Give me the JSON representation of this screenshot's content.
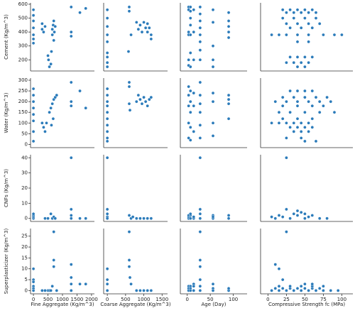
{
  "chart_data": [
    {
      "type": "scatter",
      "color": "#2b7bba",
      "ylabel": "Cement (Kg/m^3)",
      "yticks": [
        200,
        300,
        400,
        500,
        600
      ],
      "xlim": [
        -100,
        2100
      ],
      "ylim": [
        120,
        610
      ],
      "x": [
        0,
        0,
        0,
        0,
        0,
        0,
        0,
        300,
        300,
        350,
        400,
        500,
        520,
        550,
        600,
        620,
        650,
        650,
        680,
        700,
        720,
        750,
        700,
        1300,
        1300,
        1300,
        1600,
        1800
      ],
      "y": [
        560,
        520,
        480,
        430,
        380,
        350,
        320,
        460,
        420,
        400,
        440,
        230,
        200,
        150,
        170,
        260,
        420,
        380,
        450,
        480,
        400,
        440,
        340,
        580,
        400,
        370,
        540,
        570
      ]
    },
    {
      "type": "scatter",
      "color": "#2b7bba",
      "xlim": [
        -100,
        1650
      ],
      "ylim": [
        120,
        610
      ],
      "x": [
        0,
        0,
        0,
        0,
        0,
        0,
        0,
        0,
        0,
        600,
        600,
        580,
        650,
        800,
        850,
        900,
        950,
        1000,
        1050,
        1100,
        1100,
        1150,
        1200,
        1200
      ],
      "y": [
        560,
        500,
        440,
        380,
        330,
        250,
        220,
        180,
        150,
        580,
        550,
        260,
        380,
        470,
        420,
        450,
        400,
        470,
        430,
        400,
        460,
        430,
        380,
        350
      ]
    },
    {
      "type": "scatter",
      "color": "#2b7bba",
      "xlim": [
        -15,
        130
      ],
      "ylim": [
        120,
        610
      ],
      "x": [
        3,
        3,
        3,
        3,
        3,
        3,
        7,
        7,
        7,
        7,
        7,
        7,
        7,
        14,
        14,
        14,
        28,
        28,
        28,
        28,
        28,
        28,
        28,
        28,
        56,
        56,
        56,
        56,
        56,
        90,
        90,
        90,
        90,
        90
      ],
      "y": [
        580,
        560,
        400,
        380,
        200,
        160,
        580,
        550,
        500,
        450,
        380,
        250,
        150,
        560,
        400,
        200,
        580,
        530,
        480,
        430,
        380,
        330,
        270,
        200,
        560,
        470,
        300,
        200,
        150,
        540,
        480,
        440,
        400,
        360
      ]
    },
    {
      "type": "scatter",
      "color": "#2b7bba",
      "xlim": [
        -10,
        115
      ],
      "ylim": [
        120,
        610
      ],
      "x": [
        20,
        30,
        40,
        50,
        60,
        25,
        35,
        45,
        55,
        65,
        20,
        35,
        50,
        65,
        25,
        40,
        55,
        70,
        30,
        45,
        60,
        5,
        15,
        25,
        40,
        55,
        75,
        90,
        100,
        40,
        55,
        30,
        40,
        50,
        60,
        25,
        35,
        45,
        55,
        40,
        50
      ],
      "y": [
        560,
        560,
        560,
        560,
        560,
        540,
        540,
        540,
        540,
        540,
        500,
        500,
        500,
        500,
        460,
        460,
        460,
        460,
        430,
        430,
        430,
        380,
        380,
        380,
        380,
        380,
        380,
        380,
        380,
        330,
        330,
        220,
        220,
        220,
        220,
        180,
        180,
        180,
        180,
        150,
        150
      ]
    },
    {
      "type": "scatter",
      "color": "#2b7bba",
      "ylabel": "Water (Kg/m^3)",
      "yticks": [
        0,
        50,
        100,
        150,
        200,
        250,
        300
      ],
      "xlim": [
        -100,
        2100
      ],
      "ylim": [
        -15,
        310
      ],
      "x": [
        0,
        0,
        0,
        0,
        0,
        0,
        0,
        0,
        300,
        350,
        400,
        450,
        550,
        600,
        650,
        700,
        750,
        800,
        620,
        680,
        1300,
        1300,
        1300,
        1600,
        1800
      ],
      "y": [
        260,
        230,
        200,
        170,
        140,
        110,
        60,
        15,
        100,
        80,
        60,
        100,
        150,
        170,
        190,
        210,
        220,
        230,
        90,
        120,
        290,
        200,
        180,
        250,
        170
      ]
    },
    {
      "type": "scatter",
      "color": "#2b7bba",
      "xlim": [
        -100,
        1650
      ],
      "ylim": [
        -15,
        310
      ],
      "x": [
        0,
        0,
        0,
        0,
        0,
        0,
        0,
        0,
        0,
        0,
        600,
        600,
        600,
        620,
        800,
        850,
        900,
        950,
        1000,
        1050,
        1100,
        1150,
        1200
      ],
      "y": [
        260,
        230,
        200,
        180,
        150,
        120,
        90,
        60,
        30,
        15,
        290,
        270,
        190,
        160,
        200,
        230,
        210,
        190,
        220,
        200,
        180,
        210,
        220
      ]
    },
    {
      "type": "scatter",
      "color": "#2b7bba",
      "xlim": [
        -15,
        130
      ],
      "ylim": [
        -15,
        310
      ],
      "x": [
        3,
        3,
        3,
        3,
        3,
        7,
        7,
        7,
        7,
        7,
        14,
        14,
        14,
        28,
        28,
        28,
        28,
        28,
        28,
        56,
        56,
        56,
        56,
        90,
        90,
        90,
        90
      ],
      "y": [
        270,
        230,
        180,
        100,
        30,
        250,
        200,
        150,
        80,
        20,
        240,
        180,
        60,
        290,
        230,
        190,
        150,
        90,
        30,
        240,
        200,
        100,
        40,
        230,
        210,
        190,
        120
      ]
    },
    {
      "type": "scatter",
      "color": "#2b7bba",
      "xlim": [
        -10,
        115
      ],
      "ylim": [
        -15,
        310
      ],
      "x": [
        30,
        40,
        50,
        60,
        20,
        35,
        50,
        65,
        80,
        10,
        25,
        40,
        55,
        70,
        85,
        20,
        40,
        60,
        75,
        15,
        30,
        50,
        70,
        90,
        20,
        40,
        60,
        5,
        15,
        25,
        35,
        45,
        55,
        30,
        40,
        50,
        60,
        35,
        45,
        55,
        25,
        45,
        50,
        65
      ],
      "y": [
        250,
        250,
        250,
        250,
        220,
        220,
        220,
        220,
        220,
        200,
        200,
        200,
        200,
        200,
        200,
        180,
        180,
        180,
        180,
        150,
        150,
        150,
        150,
        150,
        120,
        120,
        120,
        100,
        100,
        100,
        100,
        100,
        100,
        80,
        80,
        80,
        80,
        60,
        60,
        60,
        30,
        30,
        15,
        15
      ]
    },
    {
      "type": "scatter",
      "color": "#2b7bba",
      "ylabel": "CNFs (Kg/m^3)",
      "yticks": [
        0,
        10,
        20,
        30,
        40
      ],
      "xlim": [
        -100,
        2100
      ],
      "ylim": [
        -2,
        42
      ],
      "x": [
        0,
        0,
        0,
        0,
        400,
        500,
        600,
        650,
        700,
        750,
        1300,
        1300,
        1300,
        1300,
        1600,
        1800
      ],
      "y": [
        0,
        1,
        2,
        3,
        0,
        0,
        3,
        0,
        1,
        0,
        40,
        6,
        2,
        0,
        0,
        0
      ]
    },
    {
      "type": "scatter",
      "color": "#2b7bba",
      "xlim": [
        -100,
        1650
      ],
      "ylim": [
        -2,
        42
      ],
      "x": [
        0,
        0,
        0,
        0,
        0,
        600,
        650,
        700,
        800,
        900,
        1000,
        1100,
        1200
      ],
      "y": [
        40,
        6,
        3,
        1,
        0,
        2,
        0,
        1,
        0,
        0,
        0,
        0,
        0
      ]
    },
    {
      "type": "scatter",
      "color": "#2b7bba",
      "xlim": [
        -15,
        130
      ],
      "ylim": [
        -2,
        42
      ],
      "x": [
        3,
        3,
        3,
        7,
        7,
        7,
        14,
        14,
        28,
        28,
        28,
        28,
        56,
        56,
        56,
        90,
        90
      ],
      "y": [
        0,
        1,
        2,
        0,
        2,
        3,
        0,
        1,
        40,
        6,
        3,
        0,
        0,
        2,
        1,
        0,
        2
      ]
    },
    {
      "type": "scatter",
      "color": "#2b7bba",
      "xlim": [
        -10,
        115
      ],
      "ylim": [
        -2,
        42
      ],
      "x": [
        5,
        10,
        15,
        20,
        25,
        30,
        35,
        40,
        45,
        50,
        55,
        60,
        70,
        80,
        25,
        40,
        50
      ],
      "y": [
        1,
        0,
        2,
        1,
        40,
        0,
        3,
        2,
        4,
        3,
        1,
        2,
        0,
        0,
        6,
        5,
        0
      ]
    },
    {
      "type": "scatter",
      "color": "#2b7bba",
      "ylabel": "Superplasticizer (Kg/m^3)",
      "yticks": [
        0,
        5,
        10,
        15,
        20,
        25
      ],
      "xlabel": "Fine Aggregate (Kg/m^3)",
      "xticks": [
        0,
        500,
        1000,
        1500,
        2000
      ],
      "xlim": [
        -100,
        2100
      ],
      "ylim": [
        -1.5,
        28.5
      ],
      "x": [
        0,
        0,
        0,
        0,
        0,
        0,
        300,
        400,
        500,
        550,
        600,
        650,
        700,
        700,
        700,
        800,
        1300,
        1300,
        1300,
        1300,
        1600,
        1800
      ],
      "y": [
        10,
        5,
        4,
        2,
        1,
        0,
        0,
        0,
        0,
        0,
        0,
        2,
        27,
        14,
        11,
        0,
        12,
        6,
        3,
        0,
        3,
        3
      ]
    },
    {
      "type": "scatter",
      "color": "#2b7bba",
      "xlabel": "Coarse Aggregate (Kg/m^3)",
      "xticks": [
        0,
        500,
        1000,
        1500
      ],
      "xlim": [
        -100,
        1650
      ],
      "ylim": [
        -1.5,
        28.5
      ],
      "x": [
        0,
        0,
        0,
        0,
        600,
        600,
        600,
        620,
        650,
        800,
        900,
        1000,
        1100,
        1200
      ],
      "y": [
        10,
        5,
        3,
        0,
        27,
        14,
        11,
        6,
        3,
        0,
        0,
        0,
        0,
        0
      ]
    },
    {
      "type": "scatter",
      "color": "#2b7bba",
      "xlabel": "Age (Day)",
      "xticks": [
        0,
        50,
        100
      ],
      "xlim": [
        -15,
        130
      ],
      "ylim": [
        -1.5,
        28.5
      ],
      "x": [
        3,
        3,
        3,
        7,
        7,
        7,
        14,
        14,
        14,
        28,
        28,
        28,
        28,
        28,
        28,
        56,
        56,
        56,
        90,
        90
      ],
      "y": [
        2,
        1,
        0,
        2,
        1,
        0,
        3,
        2,
        0,
        27,
        14,
        11,
        5,
        2,
        0,
        3,
        1,
        0,
        0,
        1
      ]
    },
    {
      "type": "scatter",
      "color": "#2b7bba",
      "xlabel": "Compressive Strength fc (MPa)",
      "xticks": [
        0,
        25,
        50,
        75,
        100
      ],
      "xlim": [
        -10,
        115
      ],
      "ylim": [
        -1.5,
        28.5
      ],
      "x": [
        5,
        15,
        25,
        35,
        45,
        55,
        65,
        75,
        85,
        95,
        10,
        20,
        30,
        40,
        50,
        60,
        70,
        15,
        30,
        45,
        60,
        75,
        25,
        10,
        15,
        20,
        50,
        60
      ],
      "y": [
        0,
        0,
        0,
        0,
        0,
        0,
        0,
        0,
        0,
        0,
        1,
        1,
        1,
        1,
        1,
        1,
        1,
        2,
        2,
        2,
        2,
        2,
        27,
        12,
        10,
        5,
        3,
        3
      ]
    }
  ]
}
